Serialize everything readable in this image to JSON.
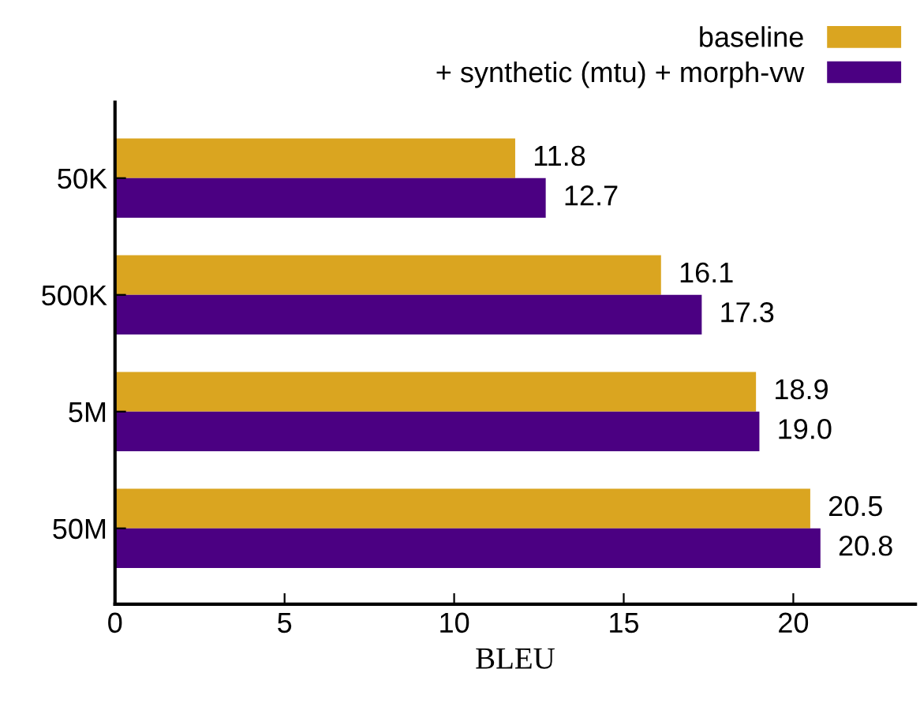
{
  "chart_data": {
    "type": "bar",
    "orientation": "horizontal",
    "xlabel": "BLEU",
    "categories": [
      "50K",
      "500K",
      "5M",
      "50M"
    ],
    "series": [
      {
        "name": "baseline",
        "color": "#daa520",
        "values": [
          11.8,
          16.1,
          18.9,
          20.5
        ],
        "value_labels": [
          "11.8",
          "16.1",
          "18.9",
          "20.5"
        ]
      },
      {
        "name": "+ synthetic (mtu) + morph-vw",
        "color": "#4b0082",
        "values": [
          12.7,
          17.3,
          19.0,
          20.8
        ],
        "value_labels": [
          "12.7",
          "17.3",
          "19.0",
          "20.8"
        ]
      }
    ],
    "xlim": [
      0,
      23.6
    ],
    "xticks": [
      0,
      5,
      10,
      15,
      20
    ],
    "legend": "top right",
    "grid": false
  }
}
